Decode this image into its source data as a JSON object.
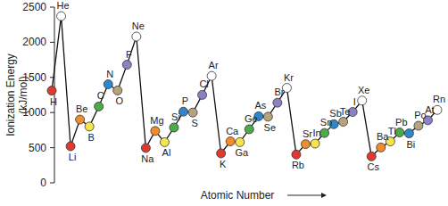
{
  "chart_data": {
    "type": "line",
    "x_label": "Atomic Number",
    "y_label": "Ionization Energy\n(kJ/mol)",
    "categories": [
      "H",
      "He",
      "Li",
      "Be",
      "B",
      "C",
      "N",
      "O",
      "F",
      "Ne",
      "Na",
      "Mg",
      "Al",
      "Si",
      "P",
      "S",
      "Cl",
      "Ar",
      "K",
      "Ca",
      "Ga",
      "Ge",
      "As",
      "Se",
      "Br",
      "Kr",
      "Rb",
      "Sr",
      "In",
      "Sn",
      "Sb",
      "Te",
      "I",
      "Xe",
      "Cs",
      "Ba",
      "Tl",
      "Pb",
      "Bi",
      "Po",
      "At",
      "Rn"
    ],
    "values": [
      1312,
      2372,
      520,
      900,
      801,
      1086,
      1402,
      1314,
      1681,
      2081,
      496,
      738,
      578,
      787,
      1012,
      1000,
      1251,
      1521,
      419,
      590,
      579,
      762,
      947,
      941,
      1140,
      1351,
      403,
      550,
      558,
      709,
      834,
      869,
      1008,
      1170,
      376,
      503,
      589,
      716,
      703,
      812,
      890,
      1037
    ],
    "colors": [
      "#e0392f",
      "#ffffff",
      "#e0392f",
      "#f08c2e",
      "#f5e44a",
      "#4caa4c",
      "#2f87c9",
      "#b7a27e",
      "#8c82c2",
      "#ffffff",
      "#e0392f",
      "#f08c2e",
      "#f5e44a",
      "#4caa4c",
      "#2f87c9",
      "#b7a27e",
      "#8c82c2",
      "#ffffff",
      "#e0392f",
      "#f08c2e",
      "#f5e44a",
      "#4caa4c",
      "#2f87c9",
      "#b7a27e",
      "#8c82c2",
      "#ffffff",
      "#e0392f",
      "#f08c2e",
      "#f5e44a",
      "#4caa4c",
      "#2f87c9",
      "#b7a27e",
      "#8c82c2",
      "#ffffff",
      "#e0392f",
      "#f08c2e",
      "#f5e44a",
      "#4caa4c",
      "#2f87c9",
      "#b7a27e",
      "#8c82c2",
      "#ffffff"
    ],
    "marker": "circle",
    "line_style": "solid",
    "ylim": [
      0,
      2500
    ],
    "yticks": [
      0,
      500,
      1000,
      1500,
      2000,
      2500
    ],
    "grid": false,
    "tick_labels": "y",
    "data_labels": false
  }
}
